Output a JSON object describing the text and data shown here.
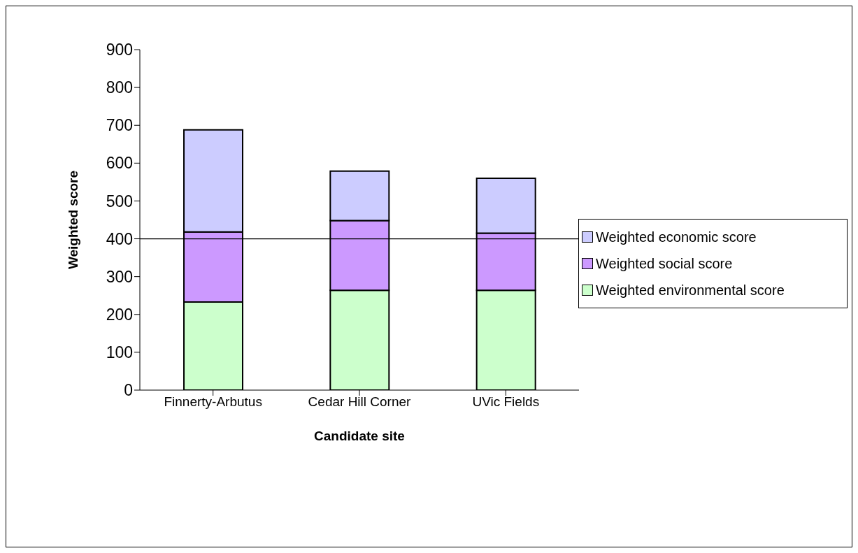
{
  "chart_data": {
    "type": "bar",
    "stacked": true,
    "xlabel": "Candidate site",
    "ylabel": "Weighted score",
    "categories": [
      "Finnerty-Arbutus",
      "Cedar Hill Corner",
      "UVic Fields"
    ],
    "series": [
      {
        "name": "Weighted environmental score",
        "color": "#ccffcc",
        "values": [
          233,
          264,
          264
        ]
      },
      {
        "name": "Weighted social score",
        "color": "#cc99ff",
        "values": [
          185,
          184,
          151
        ]
      },
      {
        "name": "Weighted economic score",
        "color": "#ccccff",
        "values": [
          270,
          131,
          145
        ]
      }
    ],
    "ylim": [
      0,
      900
    ],
    "yticks": [
      0,
      100,
      200,
      300,
      400,
      500,
      600,
      700,
      800,
      900
    ],
    "ref_lines": [
      {
        "axis": "y",
        "value": 400,
        "color": "#000000"
      }
    ],
    "legend": "right",
    "grid": false
  }
}
